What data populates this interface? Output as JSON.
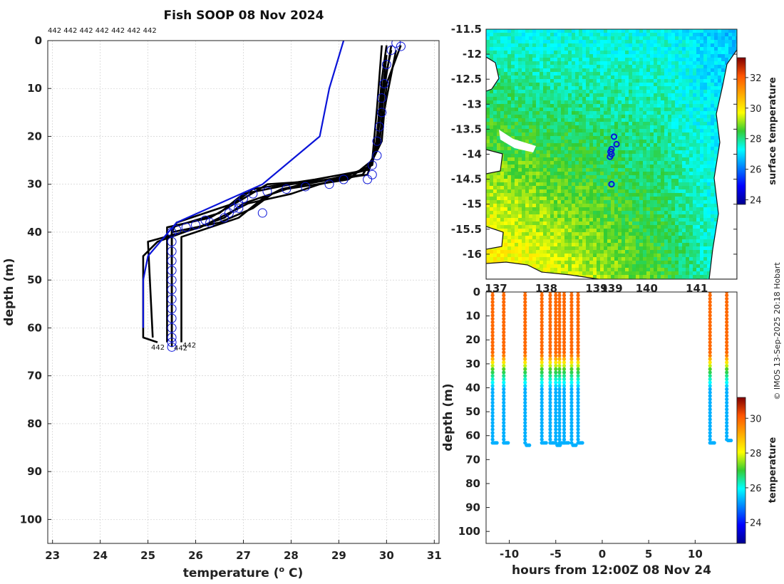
{
  "title": "Fish SOOP 08 Nov 2024",
  "profile_ids_label": "442 442 442 442 442 442 442",
  "profile_end_label": "442",
  "credit": "© IMOS 13-Sep-2025 20:18 Hobart",
  "colors": {
    "profile": "#000000",
    "climatology": "#0a14d8",
    "grid": "#c8c8c8"
  },
  "chart_data": [
    {
      "type": "line",
      "name": "temperature-profiles",
      "xlabel_prefix": "temperature (",
      "xlabel_sup": "o",
      "xlabel_suffix": " C)",
      "ylabel": "depth (m)",
      "xlim": [
        22.9,
        31.1
      ],
      "ylim": [
        105,
        0
      ],
      "xticks": [
        23,
        24,
        25,
        26,
        27,
        28,
        29,
        30,
        31
      ],
      "yticks": [
        0,
        10,
        20,
        30,
        40,
        50,
        60,
        70,
        80,
        90,
        100
      ],
      "climatology": {
        "name": "climatology",
        "points": [
          [
            29.1,
            0
          ],
          [
            28.8,
            10
          ],
          [
            28.6,
            20
          ],
          [
            27.4,
            30
          ],
          [
            25.6,
            38
          ],
          [
            25.0,
            45
          ],
          [
            24.9,
            50
          ],
          [
            24.9,
            60
          ]
        ]
      },
      "profiles": [
        {
          "points": [
            [
              30.0,
              1
            ],
            [
              29.9,
              8
            ],
            [
              29.8,
              20
            ],
            [
              29.7,
              26
            ],
            [
              29.0,
              29
            ],
            [
              27.5,
              30
            ],
            [
              27.0,
              33
            ],
            [
              26.3,
              37
            ],
            [
              25.4,
              39
            ],
            [
              25.4,
              45
            ],
            [
              25.4,
              63
            ]
          ],
          "end": [
            25.4,
            63
          ]
        },
        {
          "points": [
            [
              30.1,
              1
            ],
            [
              29.95,
              10
            ],
            [
              29.85,
              22
            ],
            [
              29.6,
              27
            ],
            [
              28.5,
              29
            ],
            [
              27.2,
              31
            ],
            [
              26.8,
              34
            ],
            [
              25.6,
              38
            ],
            [
              25.5,
              40
            ],
            [
              25.5,
              62
            ]
          ],
          "end": [
            25.5,
            62
          ]
        },
        {
          "points": [
            [
              30.2,
              2
            ],
            [
              30.0,
              12
            ],
            [
              29.8,
              23
            ],
            [
              29.5,
              28
            ],
            [
              28.0,
              30
            ],
            [
              27.0,
              32
            ],
            [
              26.5,
              36
            ],
            [
              25.5,
              39
            ],
            [
              25.5,
              64
            ]
          ],
          "end": [
            25.5,
            64
          ]
        },
        {
          "points": [
            [
              30.3,
              1
            ],
            [
              30.0,
              9
            ],
            [
              29.9,
              21
            ],
            [
              29.6,
              27
            ],
            [
              28.8,
              29
            ],
            [
              27.8,
              31
            ],
            [
              27.4,
              33
            ],
            [
              26.9,
              37
            ],
            [
              26.0,
              40
            ],
            [
              25.7,
              41
            ],
            [
              25.7,
              63
            ]
          ],
          "end": [
            25.7,
            63
          ]
        },
        {
          "points": [
            [
              30.0,
              3
            ],
            [
              29.9,
              12
            ],
            [
              29.8,
              22
            ],
            [
              29.6,
              28
            ],
            [
              28.2,
              30
            ],
            [
              27.6,
              32
            ],
            [
              27.2,
              35
            ],
            [
              26.5,
              38
            ],
            [
              25.5,
              40
            ],
            [
              25.5,
              61
            ]
          ],
          "end": [
            25.5,
            61
          ]
        },
        {
          "points": [
            [
              30.1,
              2
            ],
            [
              29.9,
              11
            ],
            [
              29.75,
              24
            ],
            [
              29.5,
              28
            ],
            [
              28.6,
              30
            ],
            [
              28.0,
              32
            ],
            [
              27.1,
              34
            ],
            [
              26.1,
              39
            ],
            [
              25.0,
              42
            ],
            [
              25.1,
              62
            ]
          ],
          "end": [
            25.1,
            62
          ]
        },
        {
          "points": [
            [
              29.9,
              1
            ],
            [
              29.8,
              14
            ],
            [
              29.7,
              25
            ],
            [
              29.2,
              29
            ],
            [
              27.9,
              31
            ],
            [
              27.0,
              34
            ],
            [
              26.6,
              37
            ],
            [
              25.2,
              42
            ],
            [
              24.9,
              45
            ],
            [
              24.9,
              62
            ],
            [
              25.2,
              63
            ]
          ],
          "end": [
            25.2,
            63
          ]
        }
      ],
      "markers": [
        [
          30.2,
          0.5
        ],
        [
          30.3,
          1.2
        ],
        [
          30.1,
          2
        ],
        [
          30.0,
          5
        ],
        [
          29.95,
          9
        ],
        [
          29.9,
          12
        ],
        [
          29.9,
          15
        ],
        [
          29.85,
          18
        ],
        [
          29.8,
          21
        ],
        [
          29.8,
          24
        ],
        [
          29.7,
          26
        ],
        [
          29.7,
          28
        ],
        [
          29.6,
          29
        ],
        [
          29.1,
          29
        ],
        [
          28.8,
          30
        ],
        [
          28.3,
          30.5
        ],
        [
          27.9,
          31
        ],
        [
          27.5,
          31.5
        ],
        [
          27.2,
          32
        ],
        [
          27.0,
          33
        ],
        [
          26.9,
          34
        ],
        [
          26.8,
          35
        ],
        [
          26.7,
          36
        ],
        [
          26.6,
          37
        ],
        [
          26.3,
          38
        ],
        [
          26.0,
          38.5
        ],
        [
          25.8,
          39
        ],
        [
          25.6,
          39.5
        ],
        [
          25.5,
          40
        ],
        [
          25.5,
          42
        ],
        [
          25.5,
          44
        ],
        [
          25.5,
          46
        ],
        [
          25.5,
          48
        ],
        [
          25.5,
          50
        ],
        [
          25.5,
          52
        ],
        [
          25.5,
          54
        ],
        [
          25.5,
          56
        ],
        [
          25.5,
          58
        ],
        [
          25.5,
          60
        ],
        [
          25.5,
          62
        ],
        [
          25.5,
          63
        ],
        [
          25.5,
          64
        ],
        [
          27.4,
          36
        ],
        [
          26.9,
          35
        ],
        [
          26.2,
          37.5
        ]
      ]
    },
    {
      "type": "heatmap",
      "name": "sea-surface-temperature-map",
      "ylabels": [
        "-11.5",
        "-12",
        "-12.5",
        "-13",
        "-13.5",
        "-14",
        "-14.5",
        "-15",
        "-15.5",
        "-16"
      ],
      "yvalues": [
        -11.5,
        -12,
        -12.5,
        -13,
        -13.5,
        -14,
        -14.5,
        -15,
        -15.5,
        -16
      ],
      "xlabels": [
        "137",
        "138",
        "139",
        "139",
        "140",
        "141"
      ],
      "lat_range": [
        -16.5,
        -11.5
      ],
      "lon_range": [
        136.8,
        141.8
      ],
      "colorbar_label": "surface temperature",
      "colorbar_ticks": [
        24,
        26,
        28,
        30,
        32
      ],
      "colorbar_range": [
        23.7,
        33.3
      ],
      "profile_locations": [
        [
          139.35,
          -13.65
        ],
        [
          139.4,
          -13.8
        ],
        [
          139.3,
          -13.9
        ],
        [
          139.28,
          -13.95
        ],
        [
          139.3,
          -14.0
        ],
        [
          139.27,
          -14.05
        ],
        [
          139.3,
          -14.6
        ]
      ]
    },
    {
      "type": "scatter",
      "name": "depth-time-section",
      "xlabel": "hours from 12:00Z 08 Nov 24",
      "ylabel": "depth (m)",
      "xlim": [
        -12.5,
        14.5
      ],
      "ylim": [
        105,
        0
      ],
      "xticks": [
        -10,
        -5,
        0,
        5,
        10
      ],
      "yticks": [
        0,
        10,
        20,
        30,
        40,
        50,
        60,
        70,
        80,
        90,
        100
      ],
      "colorbar_label": "temperature",
      "colorbar_ticks": [
        24,
        26,
        28,
        30
      ],
      "colorbar_range": [
        22.8,
        31.2
      ],
      "casts": [
        {
          "hour": -11.8,
          "bottom": 63
        },
        {
          "hour": -10.6,
          "bottom": 63
        },
        {
          "hour": -8.3,
          "bottom": 64
        },
        {
          "hour": -6.5,
          "bottom": 63
        },
        {
          "hour": -5.6,
          "bottom": 63
        },
        {
          "hour": -5.0,
          "bottom": 64
        },
        {
          "hour": -4.6,
          "bottom": 63
        },
        {
          "hour": -4.1,
          "bottom": 63
        },
        {
          "hour": -3.3,
          "bottom": 64
        },
        {
          "hour": -2.6,
          "bottom": 63
        },
        {
          "hour": 11.6,
          "bottom": 63
        },
        {
          "hour": 13.4,
          "bottom": 62
        }
      ]
    }
  ]
}
